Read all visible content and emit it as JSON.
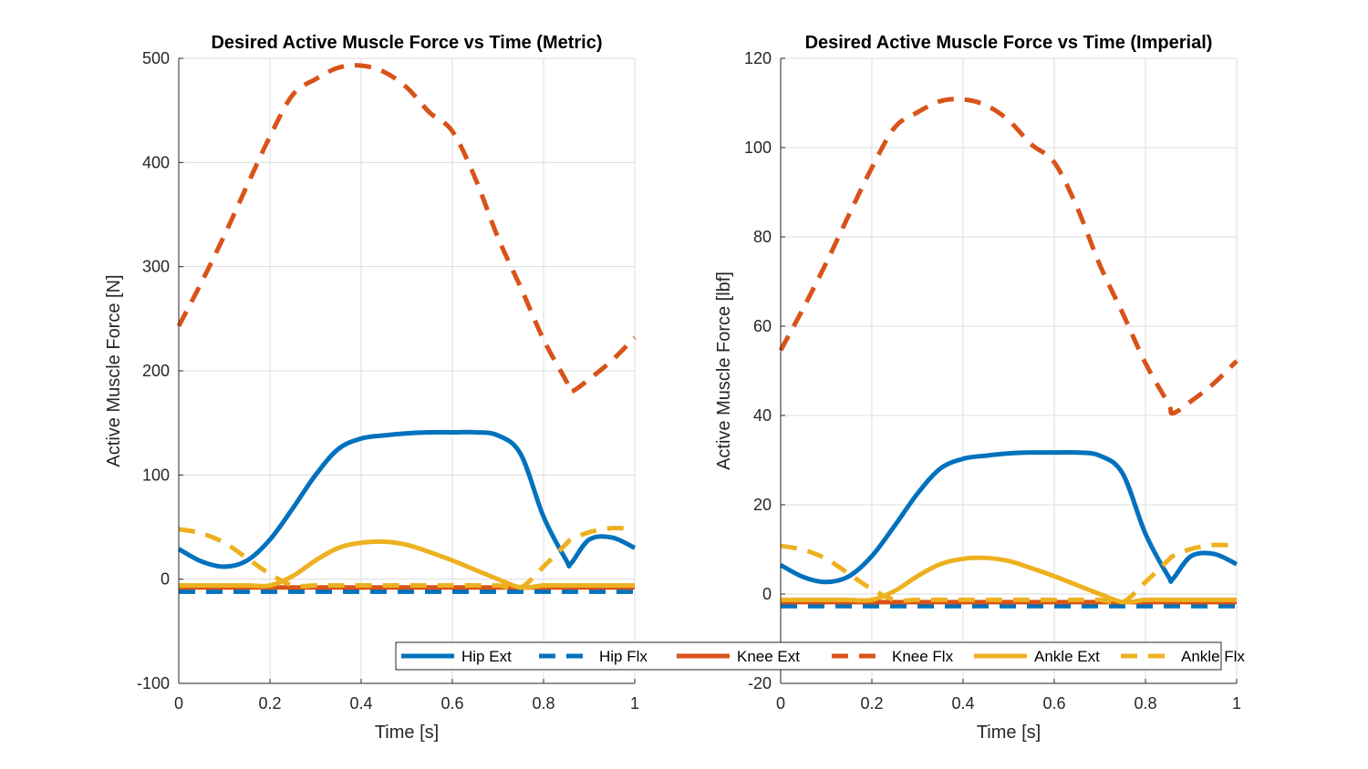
{
  "colors": {
    "blue": "#0072BD",
    "orange": "#D95319",
    "yellow": "#EDB120",
    "grid": "#dcdcdc",
    "axis": "#262626",
    "background": "#ffffff"
  },
  "legend": {
    "entries": [
      {
        "label": "Hip Ext",
        "color": "#0072BD",
        "dash": "solid"
      },
      {
        "label": "Hip Flx",
        "color": "#0072BD",
        "dash": "dashed"
      },
      {
        "label": "Knee Ext",
        "color": "#D95319",
        "dash": "solid"
      },
      {
        "label": "Knee Flx",
        "color": "#D95319",
        "dash": "dashed"
      },
      {
        "label": "Ankle Ext",
        "color": "#EDB120",
        "dash": "solid"
      },
      {
        "label": "Ankle Flx",
        "color": "#EDB120",
        "dash": "dashed"
      }
    ]
  },
  "chart_data": [
    {
      "type": "line",
      "title": "Desired Active Muscle Force vs Time (Metric)",
      "xlabel": "Time [s]",
      "ylabel": "Active Muscle Force [N]",
      "xlim": [
        0,
        1
      ],
      "ylim": [
        -100,
        500
      ],
      "xticks": [
        0,
        0.2,
        0.4,
        0.6,
        0.8,
        1
      ],
      "xtick_labels": [
        "0",
        "0.2",
        "0.4",
        "0.6",
        "0.8",
        "1"
      ],
      "yticks": [
        -100,
        0,
        100,
        200,
        300,
        400,
        500
      ],
      "ytick_labels": [
        "-100",
        "0",
        "100",
        "200",
        "300",
        "400",
        "500"
      ],
      "grid": true,
      "x": [
        0,
        0.05,
        0.1,
        0.15,
        0.2,
        0.25,
        0.3,
        0.35,
        0.4,
        0.45,
        0.5,
        0.55,
        0.6,
        0.65,
        0.7,
        0.75,
        0.8,
        0.85,
        0.86,
        0.9,
        0.95,
        1.0
      ],
      "series": [
        {
          "name": "Hip Ext",
          "values": [
            29,
            17,
            12,
            18,
            38,
            68,
            100,
            125,
            135,
            138,
            140,
            141,
            141,
            141,
            138,
            120,
            60,
            18,
            15,
            38,
            40,
            30
          ]
        },
        {
          "name": "Hip Flx",
          "values": [
            -12,
            -12,
            -12,
            -12,
            -12,
            -12,
            -12,
            -12,
            -12,
            -12,
            -12,
            -12,
            -12,
            -12,
            -12,
            -12,
            -12,
            -12,
            -12,
            -12,
            -12,
            -12
          ]
        },
        {
          "name": "Knee Ext",
          "values": [
            -8,
            -8,
            -8,
            -8,
            -8,
            -8,
            -8,
            -8,
            -8,
            -8,
            -8,
            -8,
            -8,
            -8,
            -8,
            -8,
            -8,
            -8,
            -8,
            -8,
            -8,
            -8
          ]
        },
        {
          "name": "Knee Flx",
          "values": [
            243,
            285,
            330,
            378,
            425,
            465,
            480,
            491,
            493,
            487,
            472,
            448,
            430,
            385,
            328,
            280,
            230,
            190,
            180,
            192,
            210,
            232
          ]
        },
        {
          "name": "Ankle Ext",
          "values": [
            -6,
            -6,
            -6,
            -6,
            -6,
            3,
            18,
            30,
            35,
            36,
            33,
            26,
            18,
            9,
            0,
            -8,
            -6,
            -6,
            -6,
            -6,
            -6,
            -6
          ]
        },
        {
          "name": "Ankle Flx",
          "values": [
            48,
            44,
            35,
            20,
            5,
            -6,
            -6,
            -6,
            -6,
            -6,
            -6,
            -6,
            -6,
            -6,
            -6,
            -8,
            12,
            34,
            38,
            45,
            49,
            48
          ]
        }
      ]
    },
    {
      "type": "line",
      "title": "Desired Active Muscle Force vs Time (Imperial)",
      "xlabel": "Time [s]",
      "ylabel": "Active Muscle Force [lbf]",
      "xlim": [
        0,
        1
      ],
      "ylim": [
        -20,
        120
      ],
      "xticks": [
        0,
        0.2,
        0.4,
        0.6,
        0.8,
        1
      ],
      "xtick_labels": [
        "0",
        "0.2",
        "0.4",
        "0.6",
        "0.8",
        "1"
      ],
      "yticks": [
        -20,
        0,
        20,
        40,
        60,
        80,
        100,
        120
      ],
      "ytick_labels": [
        "-20",
        "0",
        "20",
        "40",
        "60",
        "80",
        "100",
        "120"
      ],
      "grid": true,
      "x": [
        0,
        0.05,
        0.1,
        0.15,
        0.2,
        0.25,
        0.3,
        0.35,
        0.4,
        0.45,
        0.5,
        0.55,
        0.6,
        0.65,
        0.7,
        0.75,
        0.8,
        0.85,
        0.86,
        0.9,
        0.95,
        1.0
      ],
      "series": [
        {
          "name": "Hip Ext",
          "values": [
            6.5,
            3.8,
            2.7,
            4.0,
            8.5,
            15.3,
            22.5,
            28.1,
            30.3,
            31.0,
            31.5,
            31.7,
            31.7,
            31.7,
            31.0,
            27.0,
            13.5,
            4.0,
            3.4,
            8.5,
            9.0,
            6.7
          ]
        },
        {
          "name": "Hip Flx",
          "values": [
            -2.7,
            -2.7,
            -2.7,
            -2.7,
            -2.7,
            -2.7,
            -2.7,
            -2.7,
            -2.7,
            -2.7,
            -2.7,
            -2.7,
            -2.7,
            -2.7,
            -2.7,
            -2.7,
            -2.7,
            -2.7,
            -2.7,
            -2.7,
            -2.7,
            -2.7
          ]
        },
        {
          "name": "Knee Ext",
          "values": [
            -1.8,
            -1.8,
            -1.8,
            -1.8,
            -1.8,
            -1.8,
            -1.8,
            -1.8,
            -1.8,
            -1.8,
            -1.8,
            -1.8,
            -1.8,
            -1.8,
            -1.8,
            -1.8,
            -1.8,
            -1.8,
            -1.8,
            -1.8,
            -1.8,
            -1.8
          ]
        },
        {
          "name": "Knee Flx",
          "values": [
            54.6,
            64.1,
            74.2,
            85.0,
            95.5,
            104.5,
            107.9,
            110.4,
            110.8,
            109.5,
            106.1,
            100.7,
            96.7,
            86.6,
            73.7,
            62.9,
            51.7,
            42.7,
            40.5,
            43.2,
            47.2,
            52.2
          ]
        },
        {
          "name": "Ankle Ext",
          "values": [
            -1.3,
            -1.3,
            -1.3,
            -1.3,
            -1.3,
            0.7,
            4.0,
            6.7,
            7.9,
            8.1,
            7.4,
            5.8,
            4.0,
            2.0,
            0.0,
            -1.8,
            -1.3,
            -1.3,
            -1.3,
            -1.3,
            -1.3,
            -1.3
          ]
        },
        {
          "name": "Ankle Flx",
          "values": [
            10.8,
            9.9,
            7.9,
            4.5,
            1.1,
            -1.3,
            -1.3,
            -1.3,
            -1.3,
            -1.3,
            -1.3,
            -1.3,
            -1.3,
            -1.3,
            -1.3,
            -1.8,
            2.7,
            7.6,
            8.5,
            10.1,
            11.0,
            10.8
          ]
        }
      ]
    }
  ]
}
